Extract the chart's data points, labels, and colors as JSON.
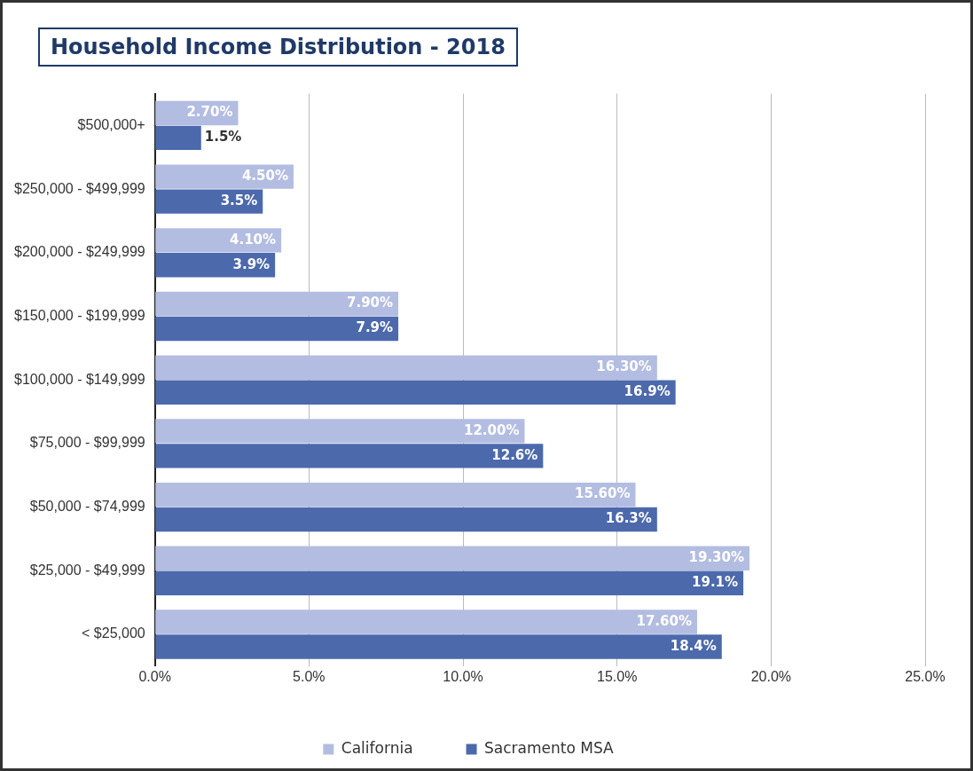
{
  "chart_data": {
    "type": "bar",
    "orientation": "horizontal",
    "title": "Household Income Distribution - 2018",
    "categories": [
      "$500,000+",
      "$250,000 - $499,999",
      "$200,000 - $249,999",
      "$150,000 - $199,999",
      "$100,000 - $149,999",
      "$75,000 - $99,999",
      "$50,000 - $74,999",
      "$25,000 - $49,999",
      "< $25,000"
    ],
    "series": [
      {
        "name": "California",
        "color": "#b3bde2",
        "values": [
          2.7,
          4.5,
          4.1,
          7.9,
          16.3,
          12.0,
          15.6,
          19.3,
          17.6
        ],
        "value_labels": [
          "2.70%",
          "4.50%",
          "4.10%",
          "7.90%",
          "16.30%",
          "12.00%",
          "15.60%",
          "19.30%",
          "17.60%"
        ]
      },
      {
        "name": "Sacramento MSA",
        "color": "#4c69ac",
        "values": [
          1.5,
          3.5,
          3.9,
          7.9,
          16.9,
          12.6,
          16.3,
          19.1,
          18.4
        ],
        "value_labels": [
          "1.5%",
          "3.5%",
          "3.9%",
          "7.9%",
          "16.9%",
          "12.6%",
          "16.3%",
          "19.1%",
          "18.4%"
        ]
      }
    ],
    "xlim": [
      0,
      25
    ],
    "xticks": [
      {
        "value": 0,
        "label": "0.0%"
      },
      {
        "value": 5,
        "label": "5.0%"
      },
      {
        "value": 10,
        "label": "10.0%"
      },
      {
        "value": 15,
        "label": "15.0%"
      },
      {
        "value": 20,
        "label": "20.0%"
      },
      {
        "value": 25,
        "label": "25.0%"
      }
    ],
    "grid": "x",
    "legend": "bottom"
  }
}
